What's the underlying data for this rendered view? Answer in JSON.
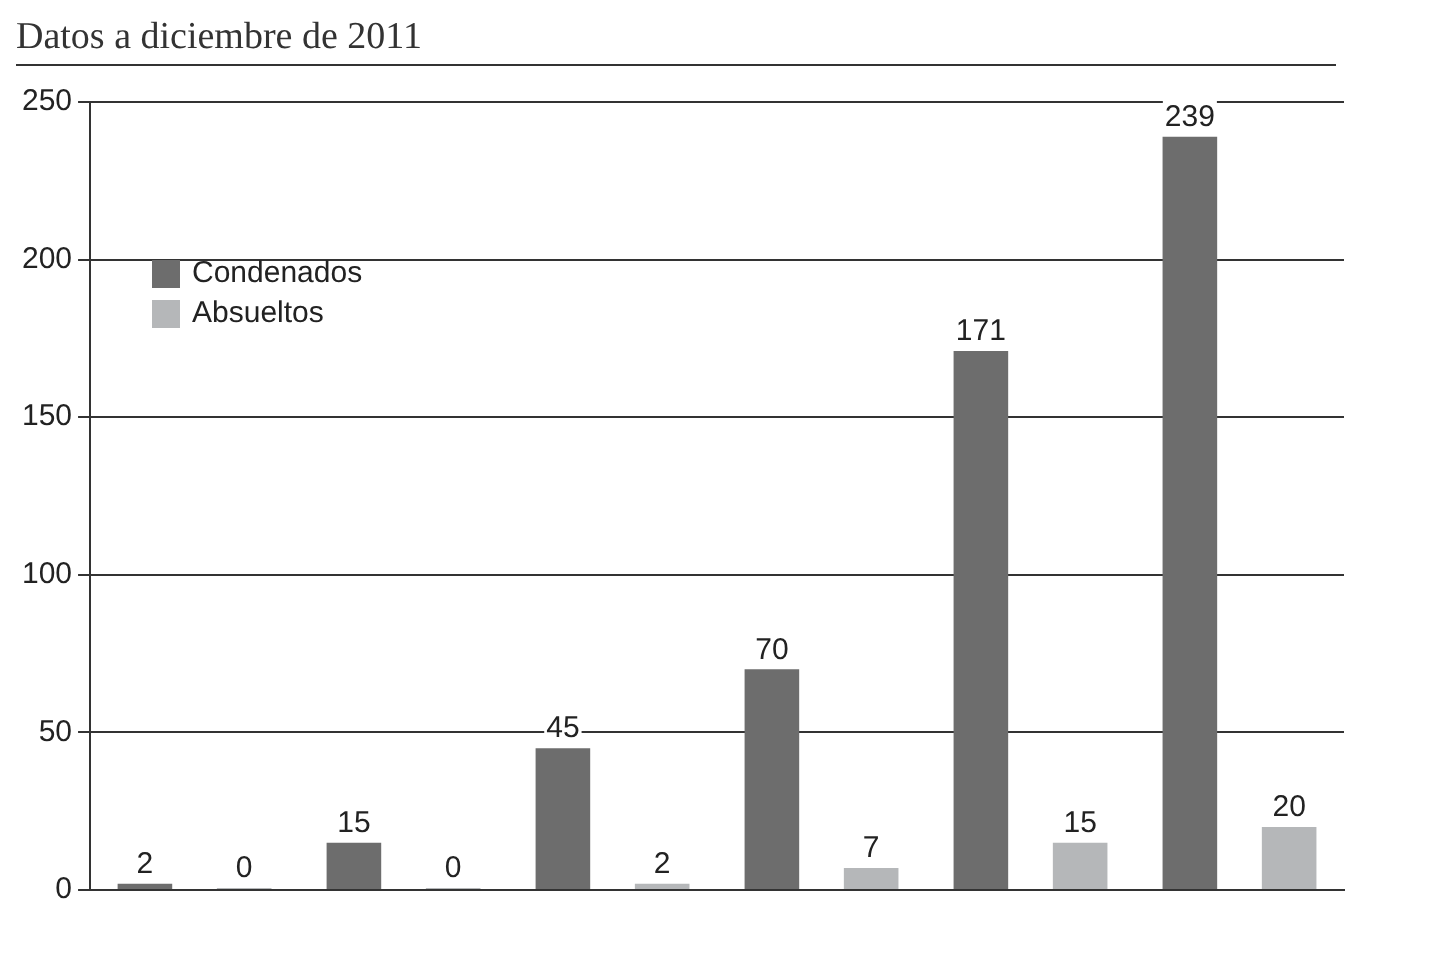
{
  "chart_data": {
    "type": "bar",
    "title": "Datos a diciembre de 2011",
    "categories": [
      null,
      null,
      null,
      null,
      null,
      null
    ],
    "series": [
      {
        "name": "Condenados",
        "color": "#6d6d6d",
        "values": [
          2,
          15,
          45,
          70,
          171,
          239
        ]
      },
      {
        "name": "Absueltos",
        "color": "#b5b7b9",
        "values": [
          0,
          0,
          2,
          7,
          15,
          20
        ]
      }
    ],
    "ylim": [
      0,
      250
    ],
    "yticks": [
      0,
      50,
      100,
      150,
      200,
      250
    ],
    "grid": "y",
    "legend": "top left",
    "data_labels": true
  }
}
